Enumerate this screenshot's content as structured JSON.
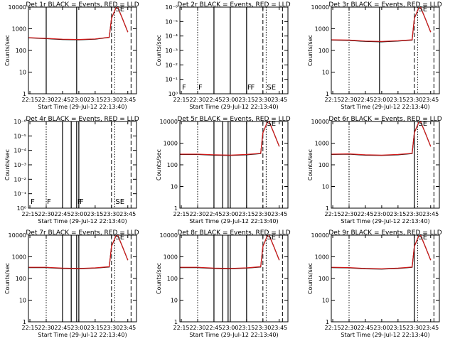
{
  "colors": {
    "events": "#000000",
    "lld": "#d41a1a",
    "background": "#ffffff"
  },
  "chart_data": [
    {
      "type": "line",
      "title": "Det 1r BLACK = Events, RED = LLD",
      "xlabel": "Start Time (29-Jul-12 22:13:40)",
      "ylabel": "Counts/sec",
      "x_ticks": [
        "22:15",
        "22:30",
        "22:45",
        "23:00",
        "23:15",
        "23:30",
        "23:45"
      ],
      "y_ticks": [
        "1",
        "10",
        "100",
        "1000",
        "10000"
      ],
      "y_scale": "log",
      "ylim": [
        1,
        10000
      ],
      "xlim": [
        "22:13:40",
        "23:53"
      ],
      "vlines": {
        "solid": [
          "22:30",
          "22:58"
        ],
        "dashed": [
          "23:30",
          "23:48"
        ],
        "dotted": [
          "22:30",
          "23:33"
        ]
      },
      "marks": [
        {
          "t": "23:33",
          "label": "SE"
        }
      ],
      "series": [
        {
          "name": "Events",
          "x": [
            "22:14",
            "22:30",
            "22:45",
            "23:00",
            "23:15",
            "23:28",
            "23:30",
            "23:35",
            "23:40",
            "23:45"
          ],
          "y": [
            380,
            350,
            320,
            310,
            330,
            400,
            3000,
            12000,
            3000,
            700
          ]
        },
        {
          "name": "LLD",
          "x": [
            "22:14",
            "22:30",
            "22:45",
            "23:00",
            "23:15",
            "23:28",
            "23:30",
            "23:35",
            "23:40",
            "23:45"
          ],
          "y": [
            390,
            360,
            330,
            320,
            340,
            410,
            3000,
            12000,
            3000,
            700
          ]
        }
      ]
    },
    {
      "type": "line",
      "title": "Det 2r BLACK = Events, RED = LLD",
      "xlabel": "Start Time (29-Jul-12 22:13:40)",
      "ylabel": "Counts/sec",
      "x_ticks": [
        "22:15",
        "22:30",
        "22:45",
        "23:00",
        "23:15",
        "23:30",
        "23:45"
      ],
      "y_ticks": [
        "10⁰",
        "10⁻¹",
        "10⁻²",
        "10⁻³",
        "10⁻⁴",
        "10⁻⁵",
        "10⁻⁶"
      ],
      "y_scale": "log",
      "ylim": [
        1e-06,
        1
      ],
      "vlines": {
        "solid": [
          "22:45",
          "23:00",
          "23:15"
        ],
        "dashed": [
          "23:30",
          "23:48"
        ],
        "dotted": [
          "22:30",
          "23:33"
        ]
      },
      "marks": [
        {
          "t": "22:15",
          "label": "F"
        },
        {
          "t": "22:30",
          "label": "F"
        },
        {
          "t": "23:15",
          "label": "F"
        },
        {
          "t": "23:18",
          "label": "F"
        },
        {
          "t": "23:33",
          "label": "SE"
        }
      ],
      "series": []
    },
    {
      "type": "line",
      "title": "Det 3r BLACK = Events, RED = LLD",
      "xlabel": "Start Time (29-Jul-12 22:13:40)",
      "ylabel": "Counts/sec",
      "x_ticks": [
        "22:15",
        "22:30",
        "22:45",
        "23:00",
        "23:15",
        "23:30",
        "23:45"
      ],
      "y_ticks": [
        "1",
        "10",
        "100",
        "1000",
        "10000"
      ],
      "y_scale": "log",
      "ylim": [
        1,
        10000
      ],
      "vlines": {
        "solid": [
          "22:58"
        ],
        "dashed": [
          "23:30",
          "23:48"
        ],
        "dotted": [
          "22:30",
          "23:33"
        ]
      },
      "marks": [
        {
          "t": "23:33",
          "label": "SE"
        }
      ],
      "series": [
        {
          "name": "Events",
          "x": [
            "22:14",
            "22:30",
            "22:45",
            "23:00",
            "23:15",
            "23:28",
            "23:30",
            "23:35",
            "23:40",
            "23:45"
          ],
          "y": [
            300,
            290,
            260,
            250,
            270,
            300,
            3000,
            12000,
            3000,
            700
          ]
        },
        {
          "name": "LLD",
          "x": [
            "22:14",
            "22:30",
            "22:45",
            "23:00",
            "23:15",
            "23:28",
            "23:30",
            "23:35",
            "23:40",
            "23:45"
          ],
          "y": [
            310,
            300,
            270,
            260,
            280,
            310,
            3000,
            12000,
            3000,
            700
          ]
        }
      ]
    },
    {
      "type": "line",
      "title": "Det 4r BLACK = Events, RED = LLD",
      "xlabel": "Start Time (29-Jul-12 22:13:40)",
      "ylabel": "Counts/sec",
      "x_ticks": [
        "22:15",
        "22:30",
        "22:45",
        "23:00",
        "23:15",
        "23:30",
        "23:45"
      ],
      "y_ticks": [
        "10⁰",
        "10⁻¹",
        "10⁻²",
        "10⁻³",
        "10⁻⁴",
        "10⁻⁵",
        "10⁻⁶"
      ],
      "y_scale": "log",
      "ylim": [
        1e-06,
        1
      ],
      "vlines": {
        "solid": [
          "22:45",
          "22:53",
          "22:58",
          "23:00"
        ],
        "dashed": [
          "23:30",
          "23:48"
        ],
        "dotted": [
          "22:30",
          "23:33"
        ]
      },
      "marks": [
        {
          "t": "22:15",
          "label": "F"
        },
        {
          "t": "22:30",
          "label": "F"
        },
        {
          "t": "22:58",
          "label": "F"
        },
        {
          "t": "23:00",
          "label": "F"
        },
        {
          "t": "23:33",
          "label": "SE"
        }
      ],
      "series": []
    },
    {
      "type": "line",
      "title": "Det 5r BLACK = Events, RED = LLD",
      "xlabel": "Start Time (29-Jul-12 22:13:40)",
      "ylabel": "Counts/sec",
      "x_ticks": [
        "22:15",
        "22:30",
        "22:45",
        "23:00",
        "23:15",
        "23:30",
        "23:45"
      ],
      "y_ticks": [
        "1",
        "10",
        "100",
        "1000",
        "10000"
      ],
      "y_scale": "log",
      "ylim": [
        1,
        10000
      ],
      "vlines": {
        "solid": [
          "22:45",
          "22:53",
          "22:58",
          "23:00",
          "23:15"
        ],
        "dashed": [
          "23:30",
          "23:48"
        ],
        "dotted": [
          "22:30",
          "23:33"
        ]
      },
      "marks": [
        {
          "t": "23:33",
          "label": "SE"
        }
      ],
      "series": [
        {
          "name": "Events",
          "x": [
            "22:14",
            "22:30",
            "22:45",
            "23:00",
            "23:15",
            "23:28",
            "23:30",
            "23:35",
            "23:40",
            "23:45"
          ],
          "y": [
            300,
            300,
            280,
            270,
            290,
            330,
            3000,
            12000,
            3000,
            700
          ]
        },
        {
          "name": "LLD",
          "x": [
            "22:14",
            "22:30",
            "22:45",
            "23:00",
            "23:15",
            "23:28",
            "23:30",
            "23:35",
            "23:40",
            "23:45"
          ],
          "y": [
            310,
            310,
            290,
            280,
            300,
            340,
            3000,
            12000,
            3000,
            700
          ]
        }
      ]
    },
    {
      "type": "line",
      "title": "Det 6r BLACK = Events, RED = LLD",
      "xlabel": "Start Time (29-Jul-12 22:13:40)",
      "ylabel": "Counts/sec",
      "x_ticks": [
        "22:15",
        "22:30",
        "22:45",
        "23:00",
        "23:15",
        "23:30",
        "23:45"
      ],
      "y_ticks": [
        "1",
        "10",
        "100",
        "1000",
        "10000"
      ],
      "y_scale": "log",
      "ylim": [
        1,
        10000
      ],
      "vlines": {
        "solid": [
          "23:30"
        ],
        "dashed": [
          "23:48"
        ],
        "dotted": [
          "22:30",
          "23:33"
        ]
      },
      "marks": [
        {
          "t": "23:33",
          "label": "SE"
        }
      ],
      "series": [
        {
          "name": "Events",
          "x": [
            "22:14",
            "22:30",
            "22:45",
            "23:00",
            "23:15",
            "23:28",
            "23:30",
            "23:35",
            "23:40",
            "23:45"
          ],
          "y": [
            300,
            310,
            280,
            270,
            290,
            330,
            3000,
            12000,
            3000,
            700
          ]
        },
        {
          "name": "LLD",
          "x": [
            "22:14",
            "22:30",
            "22:45",
            "23:00",
            "23:15",
            "23:28",
            "23:30",
            "23:35",
            "23:40",
            "23:45"
          ],
          "y": [
            310,
            320,
            290,
            280,
            300,
            340,
            3000,
            12000,
            3000,
            700
          ]
        }
      ]
    },
    {
      "type": "line",
      "title": "Det 7r BLACK = Events, RED = LLD",
      "xlabel": "Start Time (29-Jul-12 22:13:40)",
      "ylabel": "Counts/sec",
      "x_ticks": [
        "22:15",
        "22:30",
        "22:45",
        "23:00",
        "23:15",
        "23:30",
        "23:45"
      ],
      "y_ticks": [
        "1",
        "10",
        "100",
        "1000",
        "10000"
      ],
      "y_scale": "log",
      "ylim": [
        1,
        10000
      ],
      "vlines": {
        "solid": [
          "22:45",
          "22:53",
          "22:58",
          "23:00"
        ],
        "dashed": [
          "23:30",
          "23:48"
        ],
        "dotted": [
          "22:30",
          "23:33"
        ]
      },
      "marks": [
        {
          "t": "23:33",
          "label": "SE"
        }
      ],
      "series": [
        {
          "name": "Events",
          "x": [
            "22:14",
            "22:30",
            "22:45",
            "23:00",
            "23:15",
            "23:28",
            "23:30",
            "23:35",
            "23:40",
            "23:45"
          ],
          "y": [
            320,
            320,
            290,
            280,
            300,
            340,
            3000,
            12000,
            3000,
            700
          ]
        },
        {
          "name": "LLD",
          "x": [
            "22:14",
            "22:30",
            "22:45",
            "23:00",
            "23:15",
            "23:28",
            "23:30",
            "23:35",
            "23:40",
            "23:45"
          ],
          "y": [
            330,
            330,
            300,
            290,
            310,
            350,
            3000,
            12000,
            3000,
            700
          ]
        }
      ]
    },
    {
      "type": "line",
      "title": "Det 8r BLACK = Events, RED = LLD",
      "xlabel": "Start Time (29-Jul-12 22:13:40)",
      "ylabel": "Counts/sec",
      "x_ticks": [
        "22:15",
        "22:30",
        "22:45",
        "23:00",
        "23:15",
        "23:30",
        "23:45"
      ],
      "y_ticks": [
        "1",
        "10",
        "100",
        "1000",
        "10000"
      ],
      "y_scale": "log",
      "ylim": [
        1,
        10000
      ],
      "vlines": {
        "solid": [
          "22:45",
          "22:53",
          "22:58",
          "23:00",
          "23:15"
        ],
        "dashed": [
          "23:30",
          "23:48"
        ],
        "dotted": [
          "22:30",
          "23:33"
        ]
      },
      "marks": [
        {
          "t": "23:33",
          "label": "SE"
        }
      ],
      "series": [
        {
          "name": "Events",
          "x": [
            "22:14",
            "22:30",
            "22:45",
            "23:00",
            "23:15",
            "23:28",
            "23:30",
            "23:35",
            "23:40",
            "23:45"
          ],
          "y": [
            320,
            320,
            290,
            280,
            300,
            340,
            3000,
            12000,
            3000,
            700
          ]
        },
        {
          "name": "LLD",
          "x": [
            "22:14",
            "22:30",
            "22:45",
            "23:00",
            "23:15",
            "23:28",
            "23:30",
            "23:35",
            "23:40",
            "23:45"
          ],
          "y": [
            330,
            330,
            300,
            290,
            310,
            350,
            3000,
            12000,
            3000,
            700
          ]
        }
      ]
    },
    {
      "type": "line",
      "title": "Det 9r BLACK = Events, RED = LLD",
      "xlabel": "Start Time (29-Jul-12 22:13:40)",
      "ylabel": "Counts/sec",
      "x_ticks": [
        "22:15",
        "22:30",
        "22:45",
        "23:00",
        "23:15",
        "23:30",
        "23:45"
      ],
      "y_ticks": [
        "1",
        "10",
        "100",
        "1000",
        "10000"
      ],
      "y_scale": "log",
      "ylim": [
        1,
        10000
      ],
      "vlines": {
        "solid": [
          "23:30"
        ],
        "dashed": [
          "23:48"
        ],
        "dotted": [
          "22:30",
          "23:33"
        ]
      },
      "marks": [
        {
          "t": "23:33",
          "label": "SE"
        }
      ],
      "series": [
        {
          "name": "Events",
          "x": [
            "22:14",
            "22:30",
            "22:45",
            "23:00",
            "23:15",
            "23:28",
            "23:30",
            "23:35",
            "23:40",
            "23:45"
          ],
          "y": [
            320,
            310,
            280,
            270,
            290,
            330,
            3000,
            12000,
            3000,
            700
          ]
        },
        {
          "name": "LLD",
          "x": [
            "22:14",
            "22:30",
            "22:45",
            "23:00",
            "23:15",
            "23:28",
            "23:30",
            "23:35",
            "23:40",
            "23:45"
          ],
          "y": [
            330,
            320,
            290,
            280,
            300,
            340,
            3000,
            12000,
            3000,
            700
          ]
        }
      ]
    }
  ]
}
